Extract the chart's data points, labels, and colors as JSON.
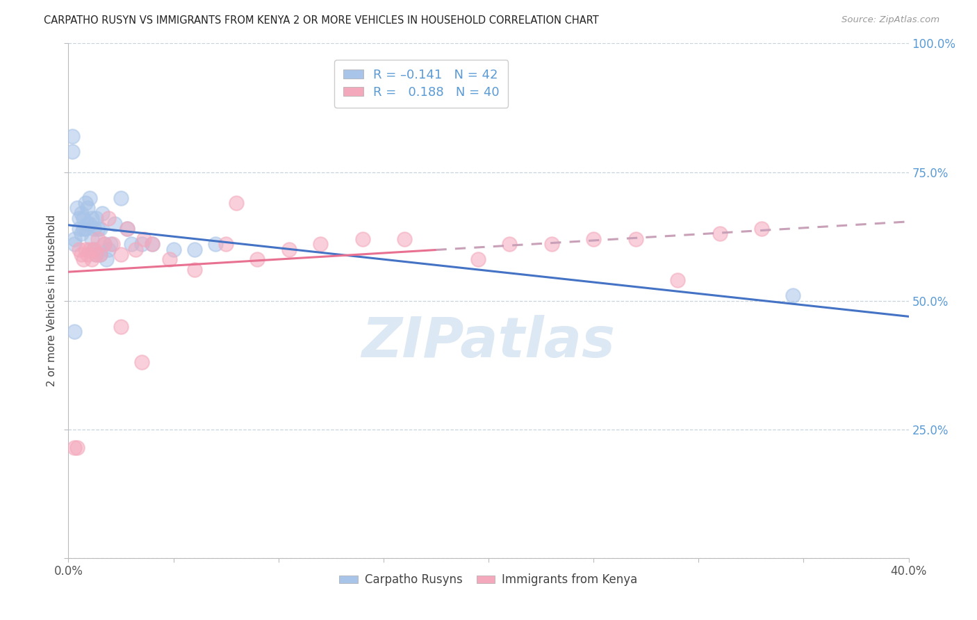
{
  "title": "CARPATHO RUSYN VS IMMIGRANTS FROM KENYA 2 OR MORE VEHICLES IN HOUSEHOLD CORRELATION CHART",
  "source": "Source: ZipAtlas.com",
  "ylabel": "2 or more Vehicles in Household",
  "xmin": 0.0,
  "xmax": 0.4,
  "ymin": 0.0,
  "ymax": 1.0,
  "yticks": [
    0.0,
    0.25,
    0.5,
    0.75,
    1.0
  ],
  "blue_color": "#a8c4e8",
  "pink_color": "#f4a8bc",
  "blue_line_color": "#4472c4",
  "pink_line_solid_color": "#e87090",
  "pink_line_dash_color": "#c8a0b8",
  "watermark": "ZIPatlas",
  "watermark_color": "#dce8f4",
  "background_color": "#ffffff",
  "grid_color": "#c8d4dc",
  "carpatho_x": [
    0.002,
    0.002,
    0.003,
    0.003,
    0.004,
    0.005,
    0.005,
    0.006,
    0.006,
    0.007,
    0.007,
    0.008,
    0.008,
    0.009,
    0.009,
    0.01,
    0.01,
    0.011,
    0.011,
    0.012,
    0.012,
    0.013,
    0.013,
    0.014,
    0.015,
    0.015,
    0.016,
    0.017,
    0.018,
    0.019,
    0.02,
    0.022,
    0.025,
    0.028,
    0.03,
    0.035,
    0.04,
    0.05,
    0.06,
    0.07,
    0.345,
    0.003
  ],
  "carpatho_y": [
    0.79,
    0.82,
    0.62,
    0.61,
    0.68,
    0.64,
    0.66,
    0.63,
    0.67,
    0.64,
    0.66,
    0.64,
    0.69,
    0.65,
    0.68,
    0.65,
    0.7,
    0.62,
    0.66,
    0.6,
    0.64,
    0.66,
    0.59,
    0.64,
    0.64,
    0.59,
    0.67,
    0.61,
    0.58,
    0.6,
    0.61,
    0.65,
    0.7,
    0.64,
    0.61,
    0.61,
    0.61,
    0.6,
    0.6,
    0.61,
    0.51,
    0.44
  ],
  "kenya_x": [
    0.003,
    0.004,
    0.005,
    0.006,
    0.007,
    0.008,
    0.009,
    0.01,
    0.011,
    0.012,
    0.013,
    0.014,
    0.015,
    0.017,
    0.019,
    0.021,
    0.025,
    0.028,
    0.032,
    0.036,
    0.04,
    0.048,
    0.06,
    0.075,
    0.09,
    0.105,
    0.12,
    0.14,
    0.16,
    0.195,
    0.21,
    0.23,
    0.25,
    0.27,
    0.29,
    0.31,
    0.33,
    0.025,
    0.035,
    0.08
  ],
  "kenya_y": [
    0.215,
    0.215,
    0.6,
    0.59,
    0.58,
    0.6,
    0.59,
    0.6,
    0.58,
    0.6,
    0.59,
    0.62,
    0.59,
    0.61,
    0.66,
    0.61,
    0.59,
    0.64,
    0.6,
    0.62,
    0.61,
    0.58,
    0.56,
    0.61,
    0.58,
    0.6,
    0.61,
    0.62,
    0.62,
    0.58,
    0.61,
    0.61,
    0.62,
    0.62,
    0.54,
    0.63,
    0.64,
    0.45,
    0.38,
    0.69
  ]
}
